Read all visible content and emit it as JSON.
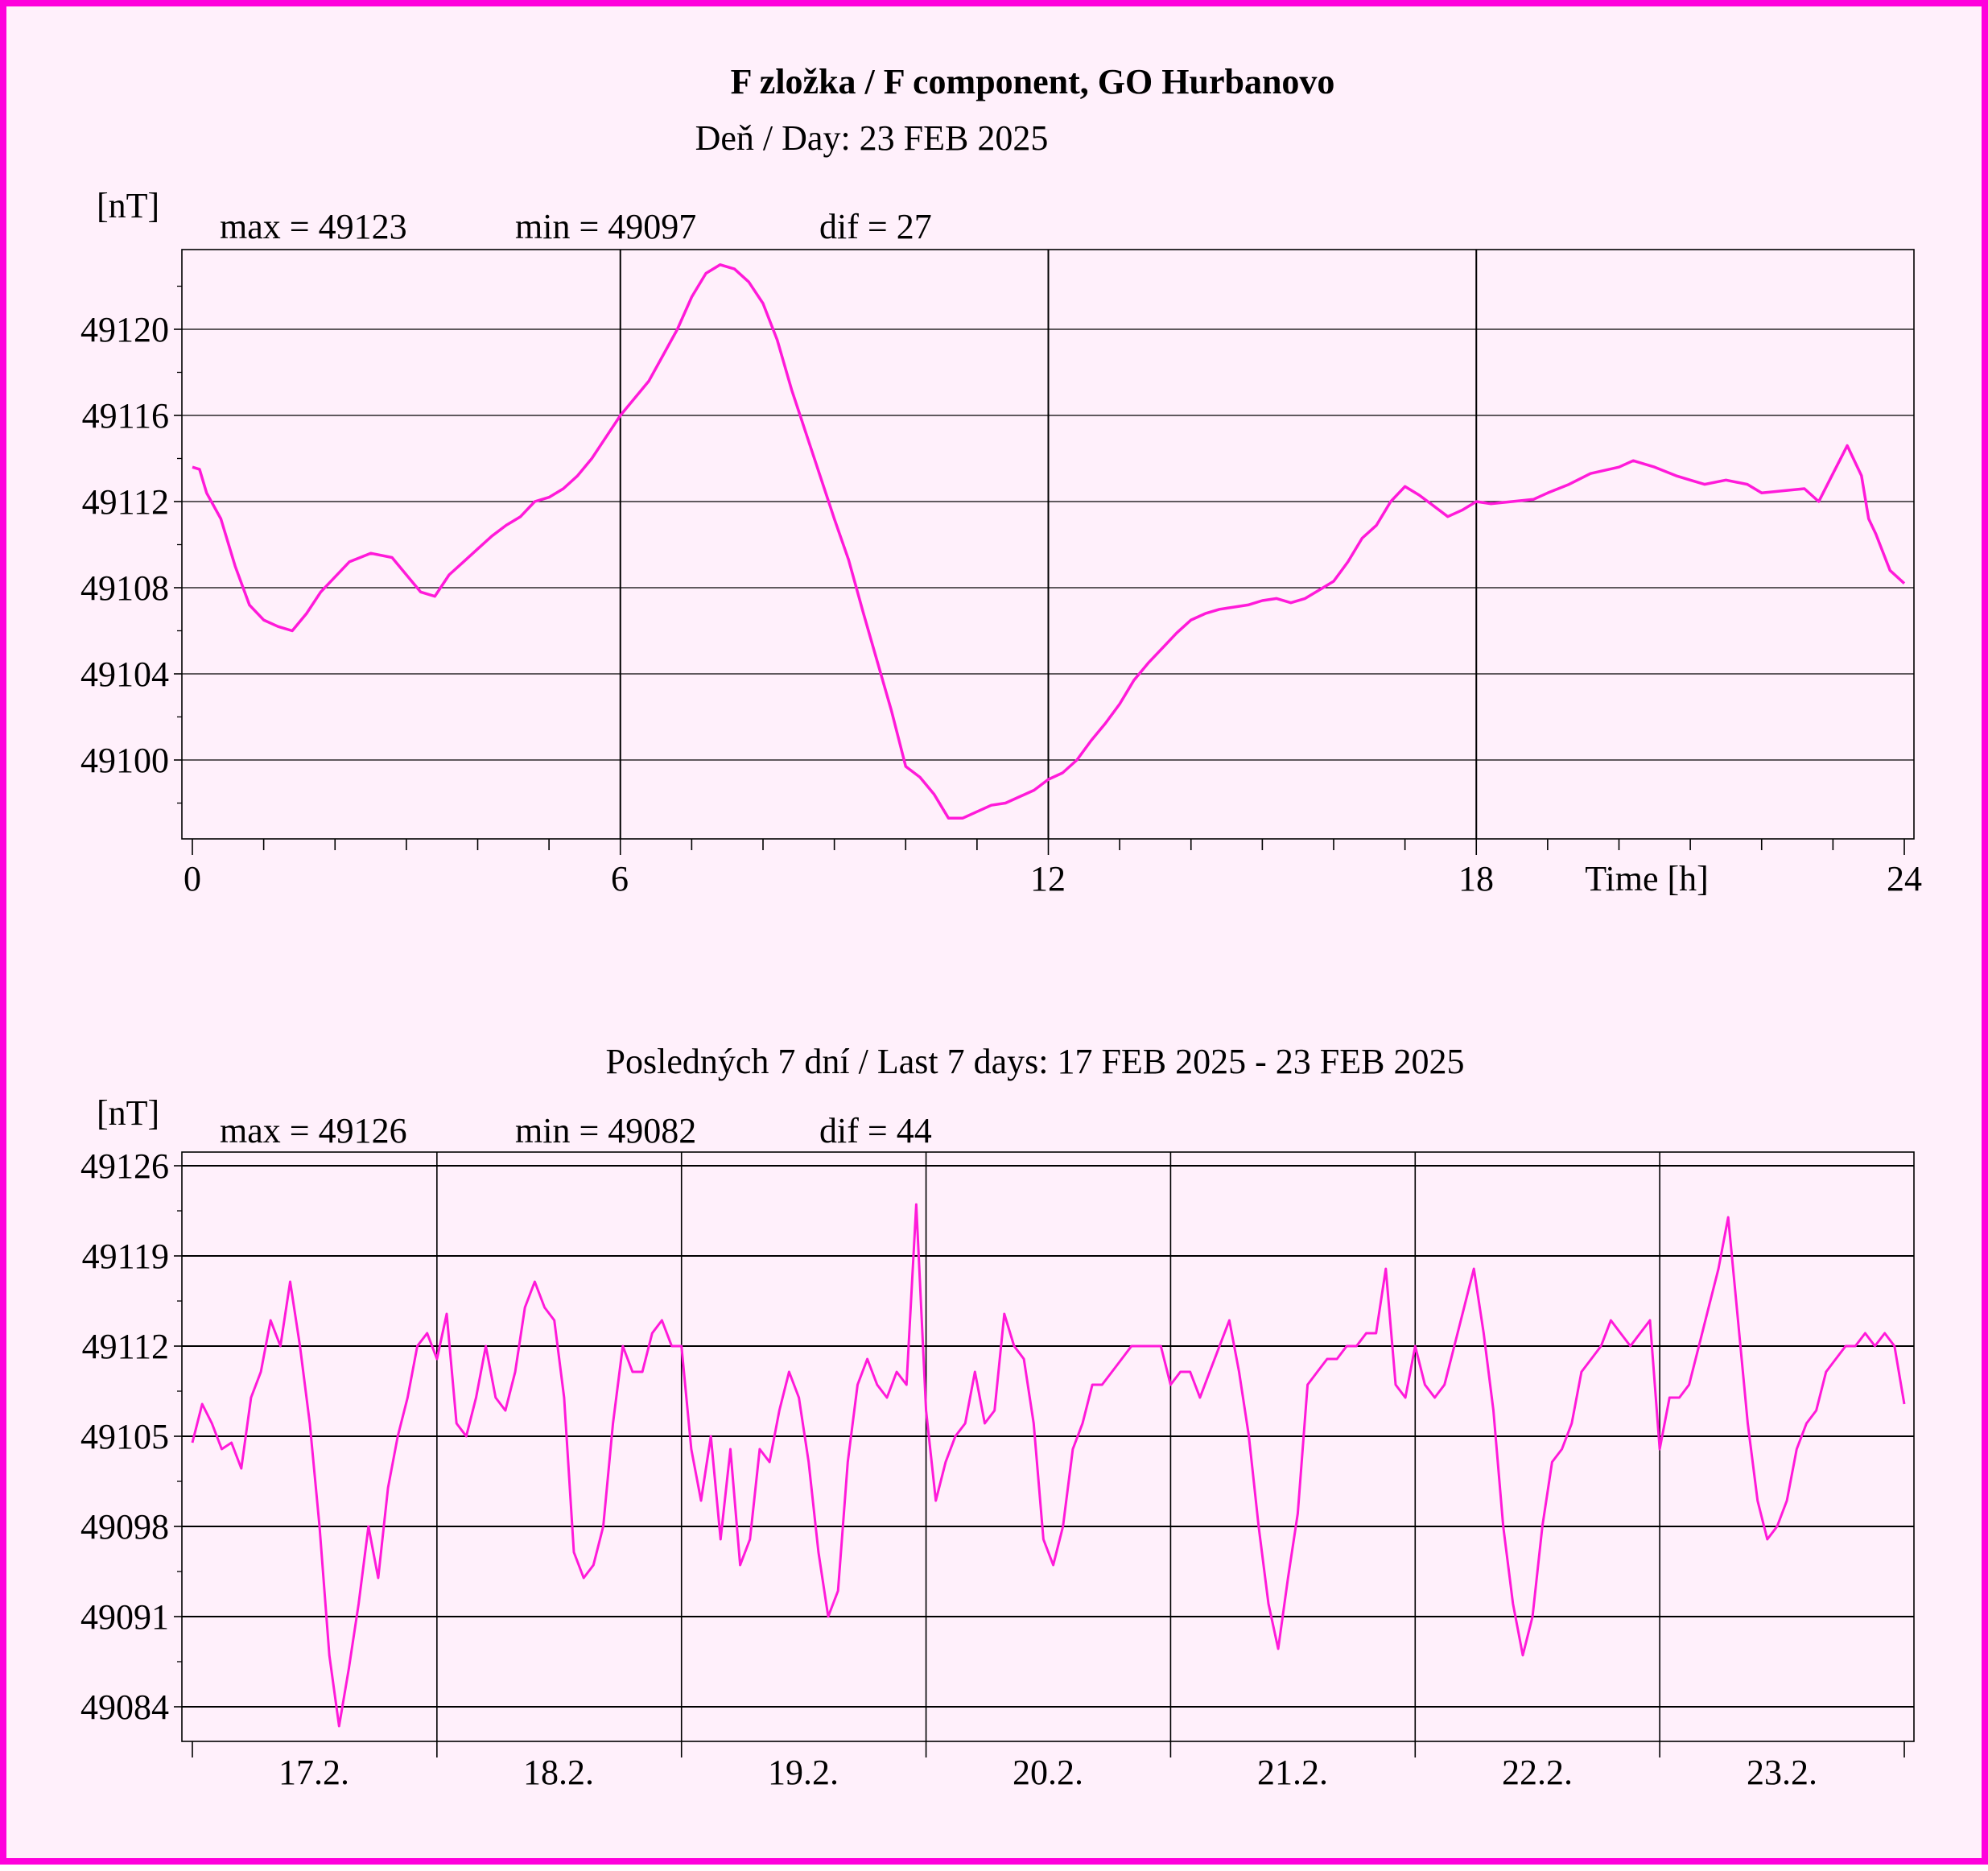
{
  "colors": {
    "frame": "#ff00dc",
    "background": "#fff0fb",
    "trace": "#ff1ad9",
    "axis": "#000000"
  },
  "title": "F zložka / F component, GO Hurbanovo",
  "day_chart": {
    "subtitle": "Deň  / Day: 23 FEB 2025",
    "unit": "[nT]",
    "stats": {
      "max": "max = 49123",
      "min": "min = 49097",
      "dif": "dif = 27"
    },
    "xlabel": "Time [h]",
    "x_tick_labels": [
      "0",
      "6",
      "12",
      "18",
      "24"
    ],
    "y_tick_labels": [
      "49120",
      "49116",
      "49112",
      "49108",
      "49104",
      "49100"
    ]
  },
  "week_chart": {
    "subtitle": "Posledných 7 dní / Last 7 days: 17 FEB 2025 - 23 FEB 2025",
    "unit": "[nT]",
    "stats": {
      "max": "max = 49126",
      "min": "min = 49082",
      "dif": "dif = 44"
    },
    "x_tick_labels": [
      "17.2.",
      "18.2.",
      "19.2.",
      "20.2.",
      "21.2.",
      "22.2.",
      "23.2."
    ],
    "y_tick_labels": [
      "49126",
      "49119",
      "49112",
      "49105",
      "49098",
      "49091",
      "49084"
    ]
  },
  "chart_data": [
    {
      "type": "line",
      "title": "F zložka / F component, GO Hurbanovo",
      "subtitle": "Deň  / Day: 23 FEB 2025",
      "xlabel": "Time [h]",
      "ylabel": "[nT]",
      "xlim": [
        0,
        24
      ],
      "ylim": [
        49096.4,
        49123.8
      ],
      "x_ticks": [
        0,
        6,
        12,
        18,
        24
      ],
      "y_ticks": [
        49120,
        49116,
        49112,
        49108,
        49104,
        49100
      ],
      "grid": true,
      "series": [
        {
          "x": [
            0,
            0.1,
            0.2,
            0.4,
            0.6,
            0.8,
            1.0,
            1.2,
            1.4,
            1.6,
            1.8,
            2.0,
            2.2,
            2.5,
            2.8,
            3.0,
            3.2,
            3.4,
            3.6,
            3.8,
            4.0,
            4.2,
            4.4,
            4.6,
            4.8,
            5.0,
            5.2,
            5.4,
            5.6,
            5.8,
            6.0,
            6.2,
            6.4,
            6.6,
            6.8,
            7.0,
            7.2,
            7.4,
            7.6,
            7.8,
            8.0,
            8.2,
            8.4,
            8.6,
            8.8,
            9.0,
            9.2,
            9.4,
            9.6,
            9.8,
            10.0,
            10.2,
            10.4,
            10.6,
            10.8,
            11.0,
            11.2,
            11.4,
            11.6,
            11.8,
            12.0,
            12.2,
            12.4,
            12.6,
            12.8,
            13.0,
            13.2,
            13.4,
            13.6,
            13.8,
            14.0,
            14.2,
            14.4,
            14.6,
            14.8,
            15.0,
            15.2,
            15.4,
            15.6,
            15.8,
            16.0,
            16.2,
            16.4,
            16.6,
            16.8,
            17.0,
            17.2,
            17.4,
            17.6,
            17.8,
            18.0,
            18.2,
            18.5,
            18.8,
            19.0,
            19.3,
            19.6,
            20.0,
            20.2,
            20.5,
            20.8,
            21.0,
            21.2,
            21.5,
            21.8,
            22.0,
            22.3,
            22.6,
            22.8,
            23.0,
            23.2,
            23.4,
            23.5,
            23.6,
            23.8,
            24.0
          ],
          "values": [
            49113.6,
            49113.5,
            49112.4,
            49111.2,
            49109.0,
            49107.2,
            49106.5,
            49106.2,
            49106.0,
            49106.8,
            49107.8,
            49108.5,
            49109.2,
            49109.6,
            49109.4,
            49108.6,
            49107.8,
            49107.6,
            49108.6,
            49109.2,
            49109.8,
            49110.4,
            49110.9,
            49111.3,
            49112.0,
            49112.2,
            49112.6,
            49113.2,
            49114.0,
            49115.0,
            49116.0,
            49116.8,
            49117.6,
            49118.8,
            49120.0,
            49121.5,
            49122.6,
            49123.0,
            49122.8,
            49122.2,
            49121.2,
            49119.5,
            49117.2,
            49115.2,
            49113.2,
            49111.2,
            49109.3,
            49106.9,
            49104.6,
            49102.3,
            49099.7,
            49099.2,
            49098.4,
            49097.3,
            49097.3,
            49097.6,
            49097.9,
            49098.0,
            49098.3,
            49098.6,
            49099.1,
            49099.4,
            49100.0,
            49100.9,
            49101.7,
            49102.6,
            49103.7,
            49104.5,
            49105.2,
            49105.9,
            49106.5,
            49106.8,
            49107.0,
            49107.1,
            49107.2,
            49107.4,
            49107.5,
            49107.3,
            49107.5,
            49107.9,
            49108.3,
            49109.2,
            49110.3,
            49110.9,
            49112.0,
            49112.7,
            49112.3,
            49111.8,
            49111.3,
            49111.6,
            49112.0,
            49111.9,
            49112.0,
            49112.1,
            49112.4,
            49112.8,
            49113.3,
            49113.6,
            49113.9,
            49113.6,
            49113.2,
            49113.0,
            49112.8,
            49113.0,
            49112.8,
            49112.4,
            49112.5,
            49112.6,
            49112.0,
            49113.3,
            49114.6,
            49113.2,
            49111.2,
            49110.5,
            49108.8,
            49108.2
          ]
        }
      ]
    },
    {
      "type": "line",
      "title": "Posledných 7 dní / Last 7 days: 17 FEB 2025 - 23 FEB 2025",
      "ylabel": "[nT]",
      "xlim": [
        0,
        7
      ],
      "ylim": [
        49081,
        49127
      ],
      "x_tick_labels": [
        "17.2.",
        "18.2.",
        "19.2.",
        "20.2.",
        "21.2.",
        "22.2.",
        "23.2."
      ],
      "y_ticks": [
        49126,
        49119,
        49112,
        49105,
        49098,
        49091,
        49084
      ],
      "grid": true,
      "series": [
        {
          "x": [
            0.0,
            0.04,
            0.08,
            0.12,
            0.16,
            0.2,
            0.24,
            0.28,
            0.32,
            0.36,
            0.4,
            0.44,
            0.48,
            0.52,
            0.56,
            0.6,
            0.64,
            0.68,
            0.72,
            0.76,
            0.8,
            0.84,
            0.88,
            0.92,
            0.96,
            1.0,
            1.04,
            1.08,
            1.12,
            1.16,
            1.2,
            1.24,
            1.28,
            1.32,
            1.36,
            1.4,
            1.44,
            1.48,
            1.52,
            1.56,
            1.6,
            1.64,
            1.68,
            1.72,
            1.76,
            1.8,
            1.84,
            1.88,
            1.92,
            1.96,
            2.0,
            2.04,
            2.08,
            2.12,
            2.16,
            2.2,
            2.24,
            2.28,
            2.32,
            2.36,
            2.4,
            2.44,
            2.48,
            2.52,
            2.56,
            2.6,
            2.64,
            2.68,
            2.72,
            2.76,
            2.8,
            2.84,
            2.88,
            2.92,
            2.96,
            3.0,
            3.04,
            3.08,
            3.12,
            3.16,
            3.2,
            3.24,
            3.28,
            3.32,
            3.36,
            3.4,
            3.44,
            3.48,
            3.52,
            3.56,
            3.6,
            3.64,
            3.68,
            3.72,
            3.76,
            3.8,
            3.84,
            3.88,
            3.92,
            3.96,
            4.0,
            4.04,
            4.08,
            4.12,
            4.16,
            4.2,
            4.24,
            4.28,
            4.32,
            4.36,
            4.4,
            4.44,
            4.48,
            4.52,
            4.56,
            4.6,
            4.64,
            4.68,
            4.72,
            4.76,
            4.8,
            4.84,
            4.88,
            4.92,
            4.96,
            5.0,
            5.04,
            5.08,
            5.12,
            5.16,
            5.2,
            5.24,
            5.28,
            5.32,
            5.36,
            5.4,
            5.44,
            5.48,
            5.52,
            5.56,
            5.6,
            5.64,
            5.68,
            5.72,
            5.76,
            5.8,
            5.84,
            5.88,
            5.92,
            5.96,
            6.0,
            6.04,
            6.08,
            6.12,
            6.16,
            6.2,
            6.24,
            6.28,
            6.32,
            6.36,
            6.4,
            6.44,
            6.48,
            6.52,
            6.56,
            6.6,
            6.64,
            6.68,
            6.72,
            6.76,
            6.8,
            6.84,
            6.88,
            6.92,
            6.96,
            7.0
          ],
          "values": [
            49104.5,
            49107.5,
            49106.0,
            49104.0,
            49104.5,
            49102.5,
            49108.0,
            49110.0,
            49114.0,
            49112.0,
            49117.0,
            49112.0,
            49106.0,
            49098.0,
            49088.0,
            49082.5,
            49087.0,
            49092.0,
            49098.0,
            49094.0,
            49101.0,
            49105.0,
            49108.0,
            49112.0,
            49113.0,
            49111.0,
            49114.5,
            49106.0,
            49105.0,
            49108.0,
            49112.0,
            49108.0,
            49107.0,
            49110.0,
            49115.0,
            49117.0,
            49115.0,
            49114.0,
            49108.0,
            49096.0,
            49094.0,
            49095.0,
            49098.0,
            49106.0,
            49112.0,
            49110.0,
            49110.0,
            49113.0,
            49114.0,
            49112.0,
            49112.0,
            49104.0,
            49100.0,
            49105.0,
            49097.0,
            49104.0,
            49095.0,
            49097.0,
            49104.0,
            49103.0,
            49107.0,
            49110.0,
            49108.0,
            49103.0,
            49096.0,
            49091.0,
            49093.0,
            49103.0,
            49109.0,
            49111.0,
            49109.0,
            49108.0,
            49110.0,
            49109.0,
            49123.0,
            49107.0,
            49100.0,
            49103.0,
            49105.0,
            49106.0,
            49110.0,
            49106.0,
            49107.0,
            49114.5,
            49112.0,
            49111.0,
            49106.0,
            49097.0,
            49095.0,
            49098.0,
            49104.0,
            49106.0,
            49109.0,
            49109.0,
            49110.0,
            49111.0,
            49112.0,
            49112.0,
            49112.0,
            49112.0,
            49109.0,
            49110.0,
            49110.0,
            49108.0,
            49110.0,
            49112.0,
            49114.0,
            49110.0,
            49105.0,
            49098.0,
            49092.0,
            49088.5,
            49094.0,
            49099.0,
            49109.0,
            49110.0,
            49111.0,
            49111.0,
            49112.0,
            49112.0,
            49113.0,
            49113.0,
            49118.0,
            49109.0,
            49108.0,
            49112.0,
            49109.0,
            49108.0,
            49109.0,
            49112.0,
            49115.0,
            49118.0,
            49113.0,
            49107.0,
            49098.0,
            49092.0,
            49088.0,
            49091.0,
            49098.0,
            49103.0,
            49104.0,
            49106.0,
            49110.0,
            49111.0,
            49112.0,
            49114.0,
            49113.0,
            49112.0,
            49113.0,
            49114.0,
            49104.0,
            49108.0,
            49108.0,
            49109.0,
            49112.0,
            49115.0,
            49118.0,
            49122.0,
            49114.0,
            49106.0,
            49100.0,
            49097.0,
            49098.0,
            49100.0,
            49104.0,
            49106.0,
            49107.0,
            49110.0,
            49111.0,
            49112.0,
            49112.0,
            49113.0,
            49112.0,
            49113.0,
            49112.0,
            49107.5
          ]
        }
      ]
    }
  ]
}
